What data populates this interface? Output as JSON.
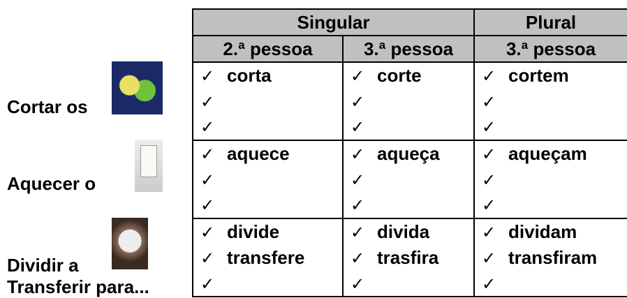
{
  "check": "✓",
  "table": {
    "header": [
      "Singular",
      "Plural"
    ],
    "subheader": [
      "2.ª pessoa",
      "3.ª pessoa",
      "3.ª pessoa"
    ],
    "groups": [
      {
        "labels": [
          "Cortar os"
        ],
        "words": [
          [
            "corta",
            "corte",
            "cortem"
          ]
        ]
      },
      {
        "labels": [
          "Aquecer o"
        ],
        "words": [
          [
            "aquece",
            "aqueça",
            "aqueçam"
          ]
        ]
      },
      {
        "labels": [
          "Dividir a",
          "Transferir para..."
        ],
        "words": [
          [
            "divide",
            "divida",
            "dividam"
          ],
          [
            "transfere",
            "trasfira",
            "transfiram"
          ]
        ]
      }
    ]
  }
}
